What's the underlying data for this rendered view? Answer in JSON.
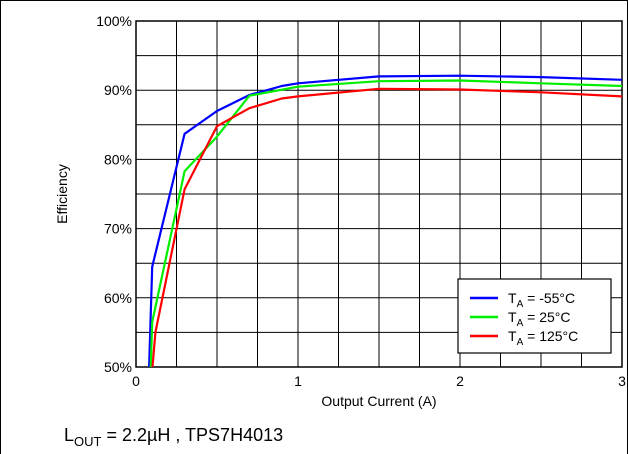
{
  "chart_data": {
    "type": "line",
    "xlabel": "Output Current (A)",
    "ylabel": "Efficiency",
    "xlim": [
      0,
      3
    ],
    "ylim": [
      50,
      100
    ],
    "x_ticks": [
      "0",
      "1",
      "2",
      "3"
    ],
    "y_ticks": [
      "50%",
      "60%",
      "70%",
      "80%",
      "90%",
      "100%"
    ],
    "grid": true,
    "legend_position": "bottom-right",
    "series": [
      {
        "name_main": "T",
        "name_sub": "A",
        "name_rest": " = -55°C",
        "color": "#0000ff",
        "x": [
          0.08,
          0.1,
          0.3,
          0.5,
          0.7,
          0.9,
          1.0,
          1.5,
          2.0,
          2.5,
          3.0
        ],
        "y": [
          49.5,
          64.5,
          83.7,
          87.0,
          89.3,
          90.6,
          91.0,
          92.0,
          92.1,
          91.9,
          91.5
        ]
      },
      {
        "name_main": "T",
        "name_sub": "A",
        "name_rest": " = 25°C",
        "color": "#00ee00",
        "x": [
          0.09,
          0.1,
          0.3,
          0.5,
          0.7,
          1.0,
          1.5,
          2.0,
          2.5,
          3.0
        ],
        "y": [
          49.5,
          56.5,
          78.3,
          83.3,
          89.2,
          90.5,
          91.3,
          91.4,
          91.0,
          90.6
        ]
      },
      {
        "name_main": "T",
        "name_sub": "A",
        "name_rest": " = 125°C",
        "color": "#ff0000",
        "x": [
          0.1,
          0.12,
          0.3,
          0.5,
          0.7,
          0.9,
          1.0,
          1.5,
          2.0,
          2.5,
          3.0
        ],
        "y": [
          49.5,
          55.0,
          75.7,
          84.8,
          87.4,
          88.8,
          89.1,
          90.2,
          90.1,
          89.7,
          89.1
        ]
      }
    ]
  },
  "caption": {
    "main": "L",
    "sub": "OUT",
    "rest": " = 2.2µH , TPS7H4013"
  }
}
